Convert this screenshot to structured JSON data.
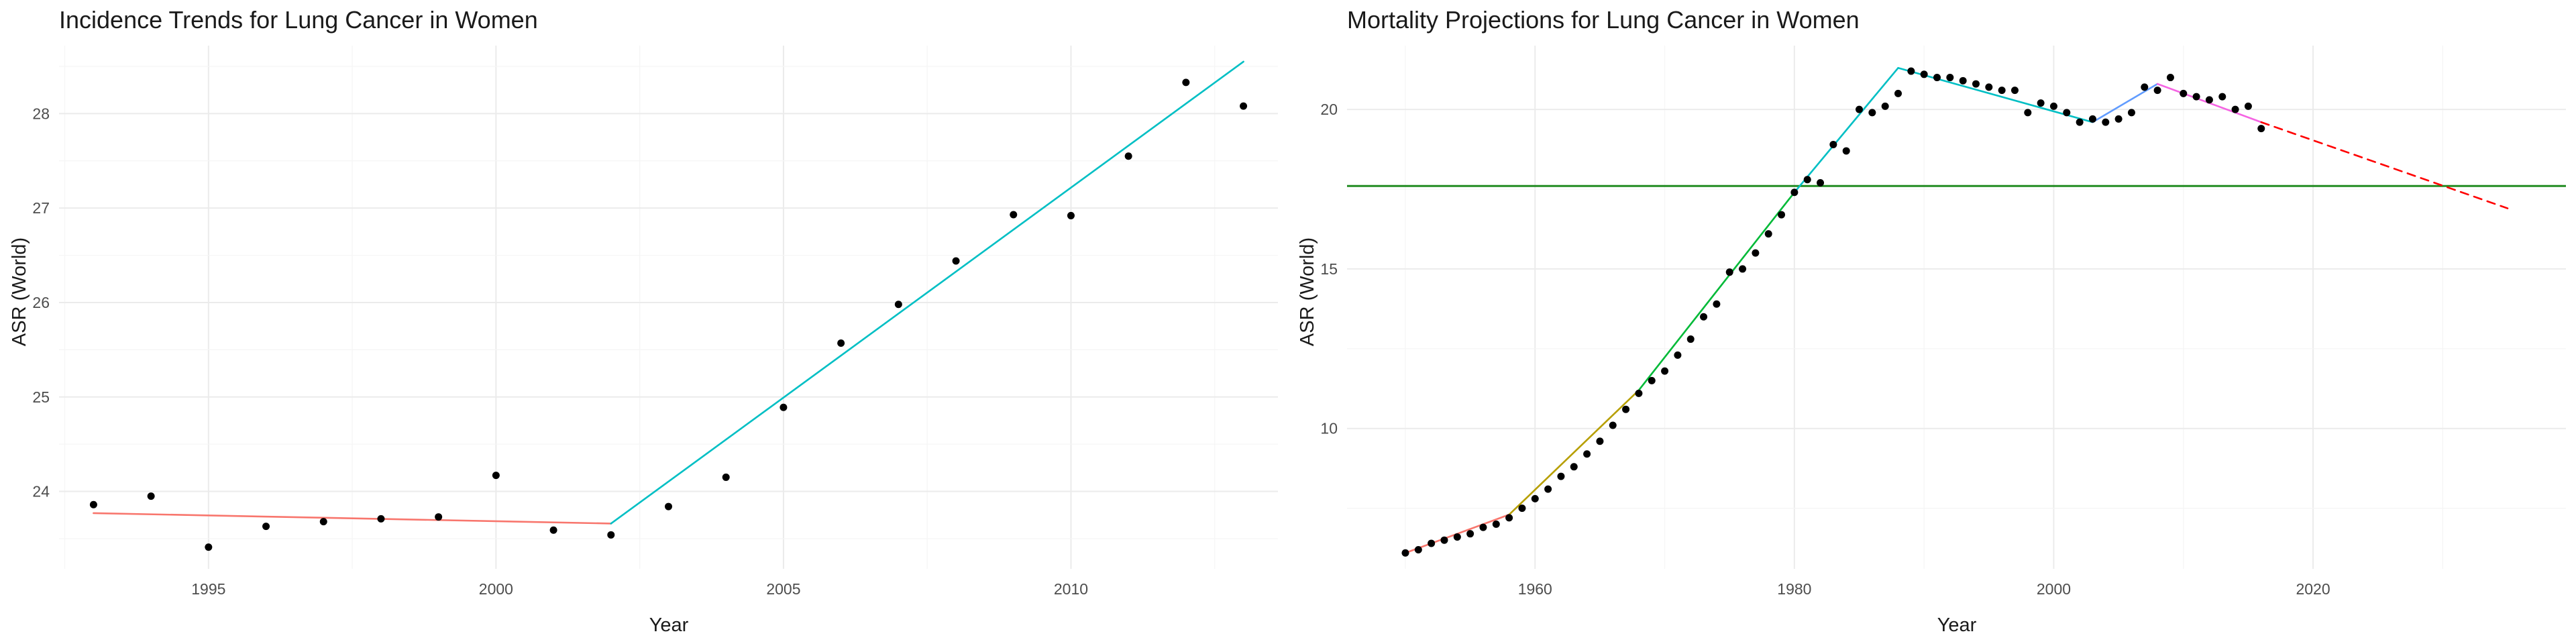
{
  "chart_data": [
    {
      "type": "scatter",
      "title": "Incidence Trends for Lung Cancer in Women",
      "xlabel": "Year",
      "ylabel": "ASR (World)",
      "xlim": [
        1992.4,
        2013.6
      ],
      "ylim": [
        23.18,
        28.72
      ],
      "xticks": [
        1995,
        2000,
        2005,
        2010
      ],
      "yticks": [
        24,
        25,
        26,
        27,
        28
      ],
      "grid": true,
      "legend": "none",
      "points": {
        "x": [
          1993,
          1994,
          1995,
          1996,
          1997,
          1998,
          1999,
          2000,
          2001,
          2002,
          2003,
          2004,
          2005,
          2006,
          2007,
          2008,
          2009,
          2010,
          2011,
          2012,
          2013
        ],
        "y": [
          23.86,
          23.95,
          23.41,
          23.63,
          23.68,
          23.71,
          23.73,
          24.17,
          23.59,
          23.54,
          23.84,
          24.15,
          24.89,
          25.57,
          25.98,
          26.44,
          26.93,
          26.92,
          27.55,
          28.33,
          28.08
        ]
      },
      "fit_lines": [
        {
          "x": [
            1993,
            2002
          ],
          "y": [
            23.77,
            23.66
          ],
          "color": "#F8766D",
          "style": "solid"
        },
        {
          "x": [
            2002,
            2013
          ],
          "y": [
            23.66,
            28.55
          ],
          "color": "#00BFC4",
          "style": "solid"
        }
      ],
      "reference_lines": []
    },
    {
      "type": "scatter",
      "title": "Mortality Projections for Lung Cancer in Women",
      "xlabel": "Year",
      "ylabel": "ASR (World)",
      "xlim": [
        1945.5,
        2039.5
      ],
      "ylim": [
        5.6,
        22.0
      ],
      "xticks": [
        1960,
        1980,
        2000,
        2020
      ],
      "yticks": [
        10,
        15,
        20
      ],
      "grid": true,
      "legend": "none",
      "points": {
        "x": [
          1950,
          1951,
          1952,
          1953,
          1954,
          1955,
          1956,
          1957,
          1958,
          1959,
          1960,
          1961,
          1962,
          1963,
          1964,
          1965,
          1966,
          1967,
          1968,
          1969,
          1970,
          1971,
          1972,
          1973,
          1974,
          1975,
          1976,
          1977,
          1978,
          1979,
          1980,
          1981,
          1982,
          1983,
          1984,
          1985,
          1986,
          1987,
          1988,
          1989,
          1990,
          1991,
          1992,
          1993,
          1994,
          1995,
          1996,
          1997,
          1998,
          1999,
          2000,
          2001,
          2002,
          2003,
          2004,
          2005,
          2006,
          2007,
          2008,
          2009,
          2010,
          2011,
          2012,
          2013,
          2014,
          2015,
          2016
        ],
        "y": [
          6.1,
          6.2,
          6.4,
          6.5,
          6.6,
          6.7,
          6.9,
          7.0,
          7.2,
          7.5,
          7.8,
          8.1,
          8.5,
          8.8,
          9.2,
          9.6,
          10.1,
          10.6,
          11.1,
          11.5,
          11.8,
          12.3,
          12.8,
          13.5,
          13.9,
          14.9,
          15.0,
          15.5,
          16.1,
          16.7,
          17.4,
          17.8,
          17.7,
          18.9,
          18.7,
          20.0,
          19.9,
          20.1,
          20.5,
          21.2,
          21.1,
          21.0,
          21.0,
          20.9,
          20.8,
          20.7,
          20.6,
          20.6,
          19.9,
          20.2,
          20.1,
          19.9,
          19.6,
          19.7,
          19.6,
          19.7,
          19.9,
          20.7,
          20.6,
          21.0,
          20.5,
          20.4,
          20.3,
          20.4,
          20.0,
          20.1,
          19.4
        ]
      },
      "fit_lines": [
        {
          "x": [
            1950,
            1958
          ],
          "y": [
            6.1,
            7.3
          ],
          "color": "#F8766D",
          "style": "solid"
        },
        {
          "x": [
            1958,
            1968
          ],
          "y": [
            7.3,
            11.2
          ],
          "color": "#B79F00",
          "style": "solid"
        },
        {
          "x": [
            1968,
            1980
          ],
          "y": [
            11.2,
            17.4
          ],
          "color": "#00BA38",
          "style": "solid"
        },
        {
          "x": [
            1980,
            1988
          ],
          "y": [
            17.4,
            21.3
          ],
          "color": "#00BFC4",
          "style": "solid"
        },
        {
          "x": [
            1988,
            2003
          ],
          "y": [
            21.3,
            19.6
          ],
          "color": "#00BFC4",
          "style": "solid"
        },
        {
          "x": [
            2003,
            2008
          ],
          "y": [
            19.6,
            20.8
          ],
          "color": "#619CFF",
          "style": "solid"
        },
        {
          "x": [
            2008,
            2016
          ],
          "y": [
            20.8,
            19.6
          ],
          "color": "#F564E3",
          "style": "solid"
        },
        {
          "x": [
            2016,
            2035
          ],
          "y": [
            19.6,
            16.9
          ],
          "color": "#FF0000",
          "style": "dashed"
        }
      ],
      "reference_lines": [
        {
          "orientation": "horizontal",
          "y": 17.6,
          "color": "#228B22"
        }
      ]
    }
  ]
}
